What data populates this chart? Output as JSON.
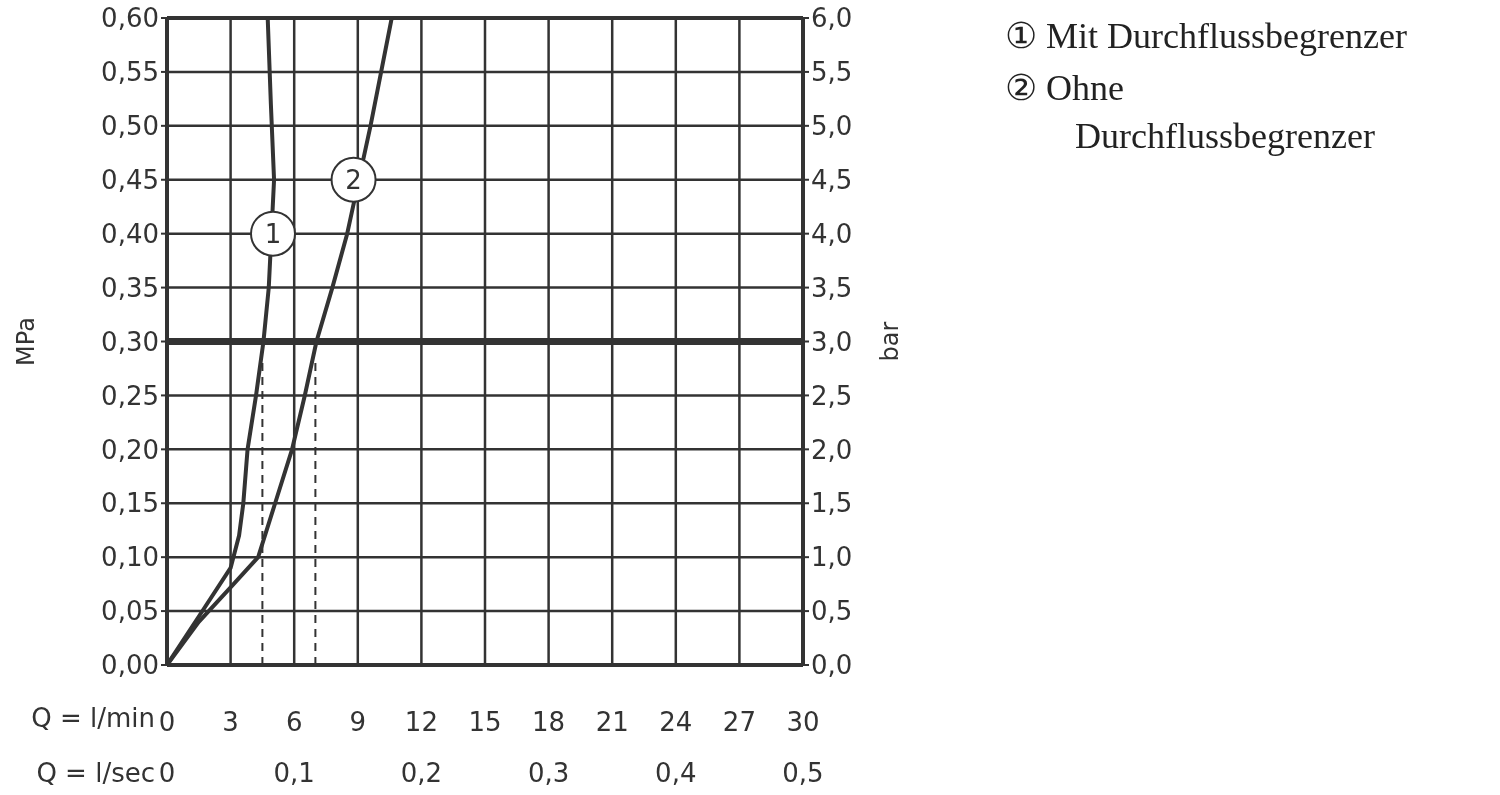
{
  "chart_data": {
    "type": "line",
    "xlabel": "Q = l/min",
    "x2label": "Q = l/sec",
    "ylabel": "MPa",
    "y2label": "bar",
    "xlim": [
      0,
      30
    ],
    "xticks": [
      0,
      3,
      6,
      9,
      12,
      15,
      18,
      21,
      24,
      27,
      30
    ],
    "x2lim": [
      0,
      0.5
    ],
    "x2ticks": [
      0,
      {
        "value": 0.1,
        "label": "0,1"
      },
      {
        "value": 0.2,
        "label": "0,2"
      },
      {
        "value": 0.3,
        "label": "0,3"
      },
      {
        "value": 0.4,
        "label": "0,4"
      },
      {
        "value": 0.5,
        "label": "0,5"
      }
    ],
    "ylim": [
      0,
      0.6
    ],
    "yticks": [
      {
        "value": 0,
        "label": "0,00"
      },
      {
        "value": 0.05,
        "label": "0,05"
      },
      {
        "value": 0.1,
        "label": "0,10"
      },
      {
        "value": 0.15,
        "label": "0,15"
      },
      {
        "value": 0.2,
        "label": "0,20"
      },
      {
        "value": 0.25,
        "label": "0,25"
      },
      {
        "value": 0.3,
        "label": "0,30"
      },
      {
        "value": 0.35,
        "label": "0,35"
      },
      {
        "value": 0.4,
        "label": "0,40"
      },
      {
        "value": 0.45,
        "label": "0,45"
      },
      {
        "value": 0.5,
        "label": "0,50"
      },
      {
        "value": 0.55,
        "label": "0,55"
      },
      {
        "value": 0.6,
        "label": "0,60"
      }
    ],
    "y2lim": [
      0,
      6
    ],
    "y2ticks": [
      {
        "value": 0,
        "label": "0,0"
      },
      {
        "value": 0.5,
        "label": "0,5"
      },
      {
        "value": 1,
        "label": "1,0"
      },
      {
        "value": 1.5,
        "label": "1,5"
      },
      {
        "value": 2,
        "label": "2,0"
      },
      {
        "value": 2.5,
        "label": "2,5"
      },
      {
        "value": 3,
        "label": "3,0"
      },
      {
        "value": 3.5,
        "label": "3,5"
      },
      {
        "value": 4,
        "label": "4,0"
      },
      {
        "value": 4.5,
        "label": "4,5"
      },
      {
        "value": 5,
        "label": "5,0"
      },
      {
        "value": 5.5,
        "label": "5,5"
      },
      {
        "value": 6,
        "label": "6,0"
      }
    ],
    "grid": true,
    "legend": "right",
    "marker": "none",
    "series": [
      {
        "name": "① Mit Durchflussbegrenzer",
        "color": "#333333",
        "x": [
          0,
          1.5,
          3,
          3.4,
          3.6,
          3.8,
          4.2,
          4.55,
          4.8,
          5.05,
          4.9,
          4.75
        ],
        "values": [
          0,
          0.045,
          0.09,
          0.12,
          0.15,
          0.2,
          0.25,
          0.3,
          0.35,
          0.45,
          0.52,
          0.6
        ]
      },
      {
        "name": "② Ohne Durchflussbegrenzer",
        "color": "#333333",
        "x": [
          0,
          1.5,
          3,
          4.3,
          5.1,
          5.9,
          6.5,
          7.05,
          7.8,
          8.5,
          9.6,
          10.6
        ],
        "values": [
          0,
          0.04,
          0.072,
          0.1,
          0.15,
          0.2,
          0.25,
          0.3,
          0.35,
          0.4,
          0.5,
          0.6
        ]
      },
      {
        "color": "#333333",
        "line_style": "dashed",
        "x": [
          4.5,
          4.5
        ],
        "values": [
          0,
          0.28
        ]
      },
      {
        "color": "#333333",
        "line_style": "dashed",
        "x": [
          7,
          7
        ],
        "values": [
          0,
          0.28
        ]
      }
    ],
    "ref_lines": [
      {
        "axis": "y",
        "value": 0.3,
        "color": "#333333"
      }
    ],
    "annotations": [
      {
        "text": "1",
        "x": 5,
        "y": 0.4
      },
      {
        "text": "2",
        "x": 8.8,
        "y": 0.45
      }
    ]
  }
}
